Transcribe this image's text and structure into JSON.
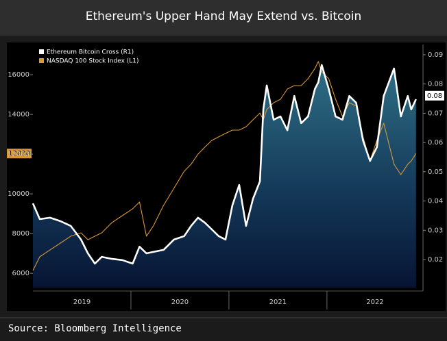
{
  "chart_data": {
    "type": "line",
    "title": "Ethereum's Upper Hand May Extend vs. Bitcoin",
    "source": "Source: Bloomberg Intelligence",
    "categories": [
      "2019",
      "2020",
      "2021",
      "2022"
    ],
    "x": [
      2019.0,
      2019.07,
      2019.175,
      2019.281,
      2019.386,
      2019.491,
      2019.561,
      2019.632,
      2019.702,
      2019.807,
      2019.912,
      2020.018,
      2020.088,
      2020.158,
      2020.228,
      2020.333,
      2020.439,
      2020.544,
      2020.614,
      2020.684,
      2020.754,
      2020.825,
      2020.895,
      2020.965,
      2021.035,
      2021.105,
      2021.175,
      2021.246,
      2021.316,
      2021.351,
      2021.386,
      2021.456,
      2021.526,
      2021.596,
      2021.667,
      2021.737,
      2021.807,
      2021.877,
      2021.912,
      2021.947,
      2022.018,
      2022.088,
      2022.158,
      2022.228,
      2022.298,
      2022.368,
      2022.439,
      2022.509,
      2022.579,
      2022.684,
      2022.754,
      2022.825,
      2022.86,
      2022.909
    ],
    "xlim": [
      2019.0,
      2022.98
    ],
    "series": [
      {
        "name": "Ethereum Bitcoin Cross (R1)",
        "color": "#ffffff",
        "axis": "y2",
        "area": true,
        "values": [
          0.0392,
          0.0338,
          0.0343,
          0.0331,
          0.0315,
          0.0268,
          0.0221,
          0.0186,
          0.0209,
          0.0202,
          0.0198,
          0.0186,
          0.0244,
          0.0221,
          0.0226,
          0.0233,
          0.0268,
          0.028,
          0.0315,
          0.0343,
          0.0326,
          0.0303,
          0.028,
          0.0268,
          0.0385,
          0.0455,
          0.0315,
          0.0408,
          0.0467,
          0.0713,
          0.0795,
          0.0678,
          0.0689,
          0.0642,
          0.0759,
          0.0666,
          0.0689,
          0.0783,
          0.0806,
          0.0865,
          0.0783,
          0.0689,
          0.0678,
          0.0759,
          0.0736,
          0.0607,
          0.0537,
          0.0584,
          0.0759,
          0.0853,
          0.0689,
          0.0759,
          0.0713,
          0.0748
        ]
      },
      {
        "name": "NASDAQ 100 Stock Index (L1)",
        "color": "#d9983b",
        "axis": "y",
        "values": [
          6140,
          6830,
          7180,
          7520,
          7870,
          8040,
          7690,
          7870,
          8040,
          8560,
          8900,
          9250,
          9590,
          7870,
          8380,
          9420,
          10280,
          11140,
          11490,
          12000,
          12350,
          12690,
          12870,
          13040,
          13210,
          13210,
          13380,
          13730,
          14070,
          13730,
          14250,
          14590,
          14760,
          15280,
          15450,
          15450,
          15800,
          16310,
          16660,
          16140,
          15800,
          14760,
          13900,
          14590,
          14420,
          12870,
          11660,
          12690,
          13560,
          11490,
          10970,
          11490,
          11660,
          12030
        ]
      }
    ],
    "ylim": [
      5280,
      17520
    ],
    "yticks": [
      6000,
      8000,
      10000,
      12000,
      14000,
      16000
    ],
    "y2lim": [
      0.0104,
      0.0935
    ],
    "y2ticks": [
      0.02,
      0.03,
      0.04,
      0.05,
      0.06,
      0.07,
      0.08,
      0.09
    ],
    "end_labels": [
      {
        "value": 12030,
        "axis": "y",
        "color": "#d9983b"
      },
      {
        "value": 0.076,
        "label": "0.08",
        "axis": "y2",
        "color": "#ffffff"
      }
    ]
  }
}
